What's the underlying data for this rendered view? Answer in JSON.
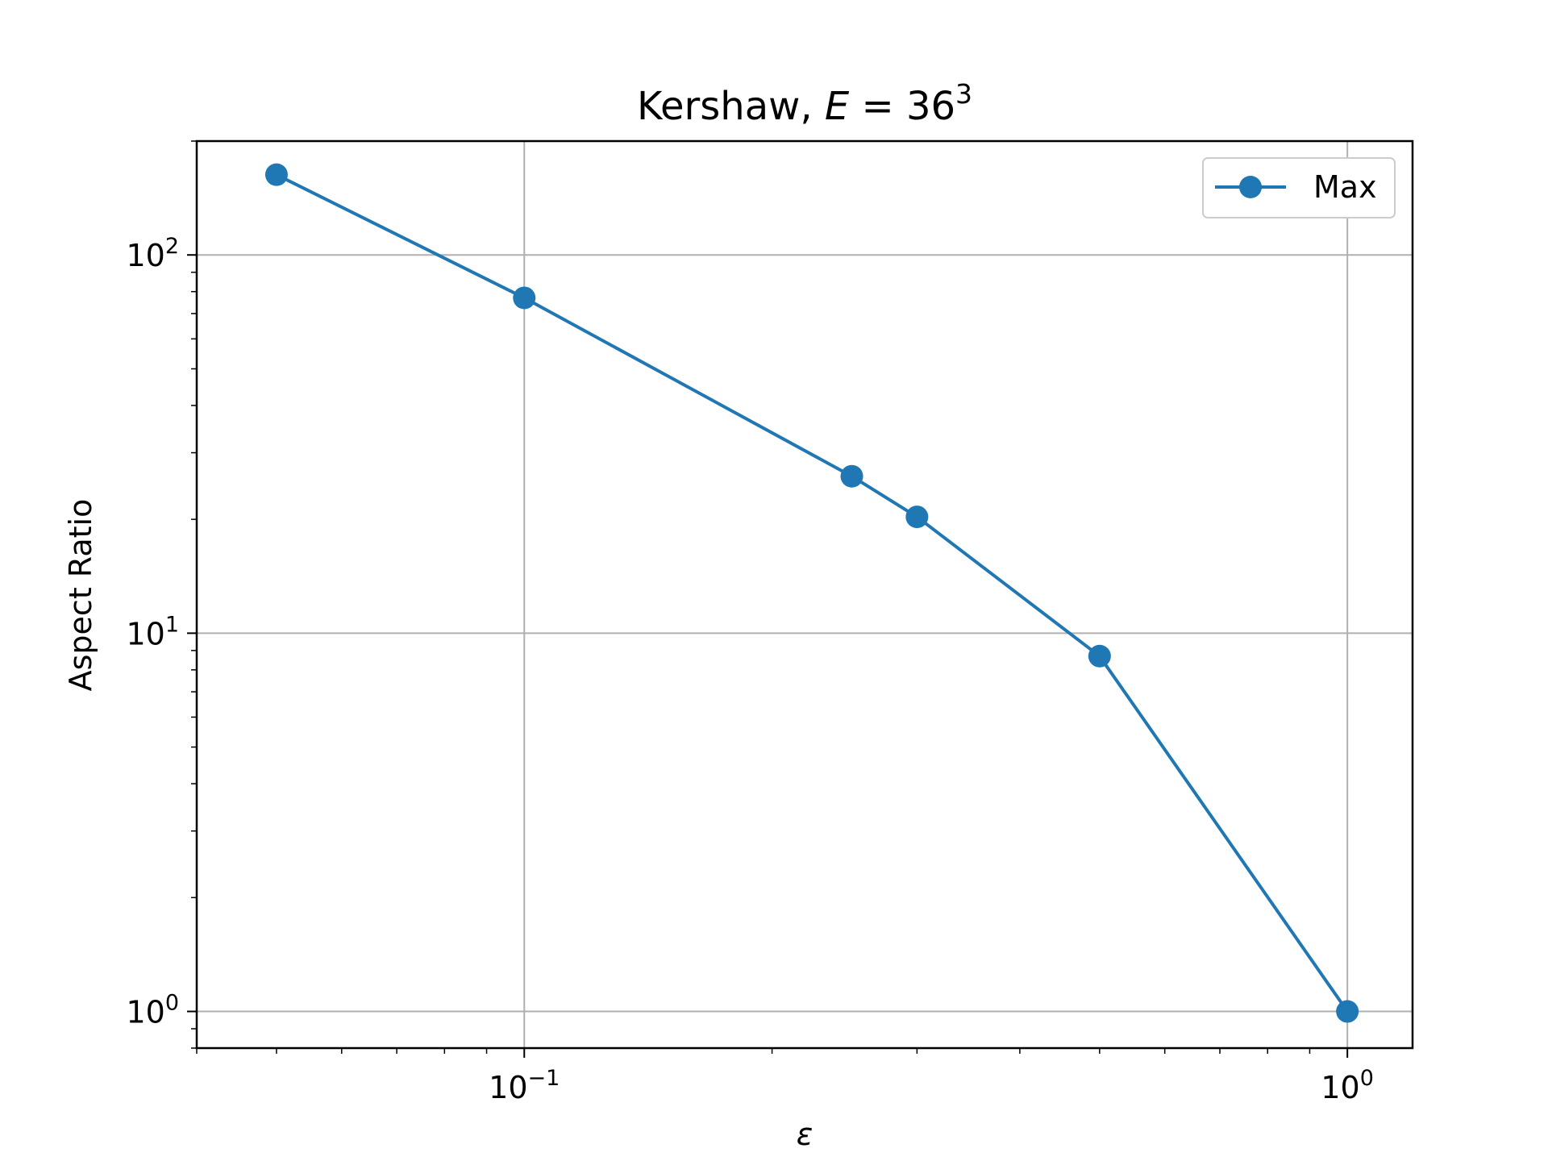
{
  "chart_data": {
    "type": "line",
    "title": {
      "prefix": "Kershaw, ",
      "symbol": "E",
      "equals": " = 36",
      "superscript": "3"
    },
    "xlabel": "ε",
    "ylabel": "Aspect Ratio",
    "xscale": "log",
    "yscale": "log",
    "xlim": [
      0.04,
      1.2
    ],
    "ylim": [
      0.8,
      200
    ],
    "grid": true,
    "legend_position": "top-right",
    "x_ticks": [
      {
        "value": 0.1,
        "base": "10",
        "exponent": "−1"
      },
      {
        "value": 1,
        "base": "10",
        "exponent": "0"
      }
    ],
    "y_ticks": [
      {
        "value": 1,
        "base": "10",
        "exponent": "0"
      },
      {
        "value": 10,
        "base": "10",
        "exponent": "1"
      },
      {
        "value": 100,
        "base": "10",
        "exponent": "2"
      }
    ],
    "series": [
      {
        "name": "Max",
        "color": "#1f77b4",
        "marker": "circle",
        "x": [
          0.05,
          0.1,
          0.25,
          0.3,
          0.5,
          1.0
        ],
        "y": [
          163,
          77,
          26,
          20.3,
          8.7,
          1.0
        ]
      }
    ]
  }
}
